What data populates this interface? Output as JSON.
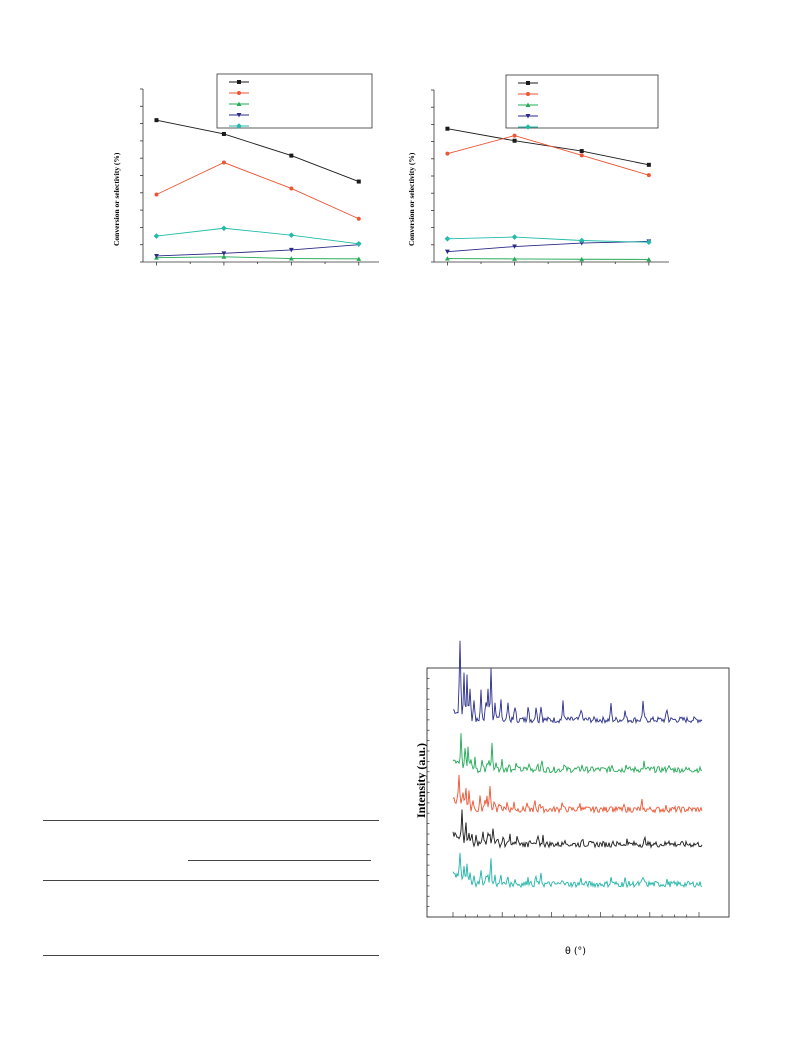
{
  "figures": {
    "catalysis_left": {
      "ylabel": "Conversion or selectivity (%)",
      "legend_count": 5
    },
    "catalysis_right": {
      "ylabel": "Conversion or selectivity (%)",
      "legend_count": 5
    },
    "xrd": {
      "ylabel": "Intensity (a.u.)",
      "xlabel": "θ (°)"
    }
  },
  "chart_data": [
    {
      "type": "line",
      "title": "",
      "xlabel": "",
      "ylabel": "Conversion or selectivity (%)",
      "x": [
        1,
        2,
        3,
        4
      ],
      "xlim": [
        0.8,
        4.3
      ],
      "ylim": [
        0,
        100
      ],
      "legend_placement": "top-right",
      "series": [
        {
          "color": "#1a1a1a",
          "marker": "square",
          "values": [
            82,
            74,
            61.5,
            46.5
          ]
        },
        {
          "color": "#ee5533",
          "marker": "circle",
          "values": [
            39,
            57.5,
            42.5,
            25
          ]
        },
        {
          "color": "#22aa55",
          "marker": "triangle-up",
          "values": [
            2.5,
            3,
            2,
            1.8
          ]
        },
        {
          "color": "#2a2a88",
          "marker": "triangle-down",
          "values": [
            3.5,
            5,
            7,
            10
          ]
        },
        {
          "color": "#22bbaa",
          "marker": "diamond",
          "values": [
            15,
            19.5,
            15.5,
            10.5
          ]
        }
      ]
    },
    {
      "type": "line",
      "title": "",
      "xlabel": "",
      "ylabel": "Conversion or selectivity (%)",
      "x": [
        1,
        2,
        3,
        4
      ],
      "xlim": [
        0.8,
        4.3
      ],
      "ylim": [
        0,
        100
      ],
      "legend_placement": "top-right",
      "series": [
        {
          "color": "#1a1a1a",
          "marker": "square",
          "values": [
            77.5,
            70.5,
            64.5,
            56.5
          ]
        },
        {
          "color": "#ee5533",
          "marker": "circle",
          "values": [
            63,
            73.5,
            62,
            50.5
          ]
        },
        {
          "color": "#22aa55",
          "marker": "triangle-up",
          "values": [
            2,
            1.8,
            1.6,
            1.5
          ]
        },
        {
          "color": "#2a2a88",
          "marker": "triangle-down",
          "values": [
            6,
            9,
            11,
            12
          ]
        },
        {
          "color": "#22bbaa",
          "marker": "diamond",
          "values": [
            13.5,
            14.5,
            12.5,
            11.5
          ]
        }
      ]
    },
    {
      "type": "line",
      "title": "",
      "xlabel": "θ (°)",
      "ylabel": "Intensity (a.u.)",
      "series": [
        {
          "color": "#2b2f8c",
          "baseline": 0.22
        },
        {
          "color": "#22aa55",
          "baseline": 0.42
        },
        {
          "color": "#ee5533",
          "baseline": 0.58
        },
        {
          "color": "#1a1a1a",
          "baseline": 0.72
        },
        {
          "color": "#22b5a8",
          "baseline": 0.88
        }
      ]
    }
  ]
}
